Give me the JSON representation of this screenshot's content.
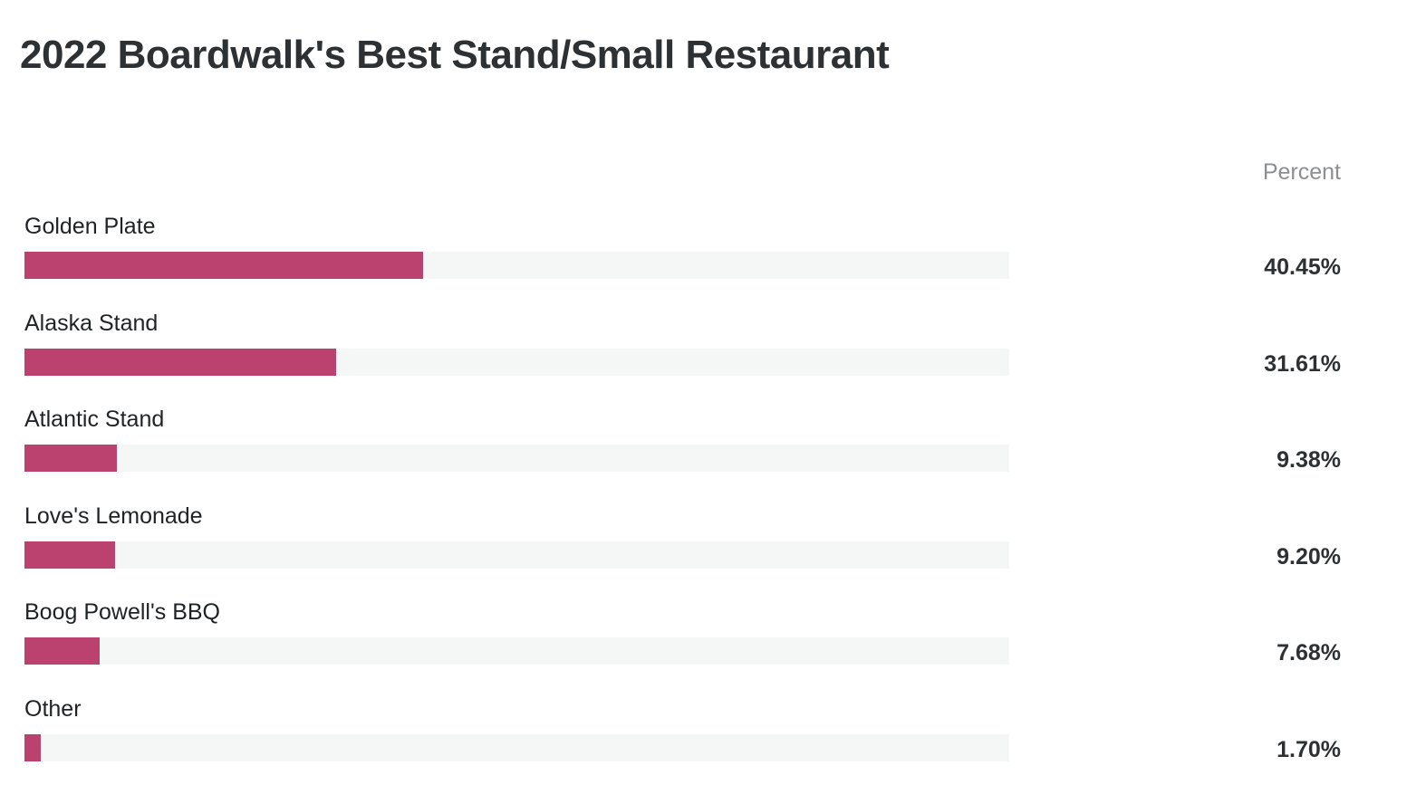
{
  "chart_data": {
    "type": "bar",
    "orientation": "horizontal",
    "title": "2022 Boardwalk's Best Stand/Small Restaurant",
    "value_header": "Percent",
    "categories": [
      "Golden Plate",
      "Alaska Stand",
      "Atlantic Stand",
      "Love's Lemonade",
      "Boog Powell's BBQ",
      "Other"
    ],
    "values": [
      40.45,
      31.61,
      9.38,
      9.2,
      7.68,
      1.7
    ],
    "value_labels": [
      "40.45%",
      "31.61%",
      "9.38%",
      "9.20%",
      "7.68%",
      "1.70%"
    ],
    "xlim": [
      0,
      100
    ],
    "bar_color": "#bb416e",
    "track_color": "#f5f6f6"
  }
}
